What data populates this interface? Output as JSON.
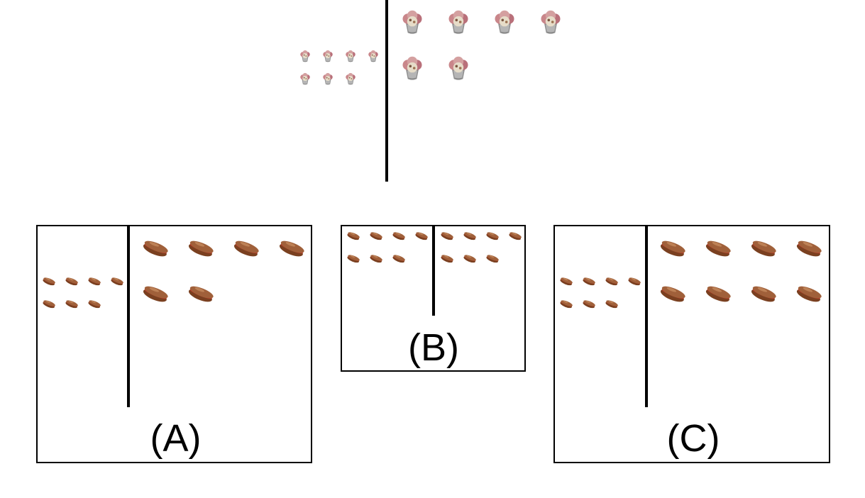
{
  "stimulus": {
    "left_item": "cupcake-icon",
    "right_item": "cupcake-icon",
    "left_count": 7,
    "right_count": 6
  },
  "options": [
    {
      "label": "(A)",
      "left_item": "sandwich-icon",
      "right_item": "sandwich-icon",
      "left_count": 7,
      "right_count": 6
    },
    {
      "label": "(B)",
      "left_item": "sandwich-icon",
      "right_item": "sandwich-icon",
      "left_count": 7,
      "right_count": 7
    },
    {
      "label": "(C)",
      "left_item": "sandwich-icon",
      "right_item": "sandwich-icon",
      "left_count": 7,
      "right_count": 8
    }
  ],
  "colors": {
    "line": "#000000",
    "bread": "#a0603a",
    "cake": "#e6dcc8",
    "frosting": "#c9868a"
  }
}
